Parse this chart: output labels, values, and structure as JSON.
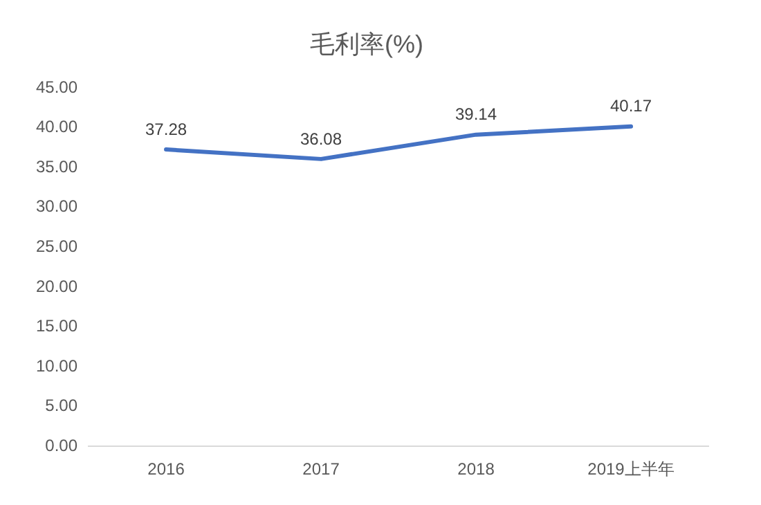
{
  "chart_data": {
    "type": "line",
    "title": "毛利率(%)",
    "categories": [
      "2016",
      "2017",
      "2018",
      "2019上半年"
    ],
    "series": [
      {
        "color": "#4472c4",
        "values": [
          37.28,
          36.08,
          39.14,
          40.17
        ]
      }
    ],
    "ylim": [
      0,
      45
    ],
    "yticks": [
      {
        "value": 0,
        "label": "0.00"
      },
      {
        "value": 5,
        "label": "5.00"
      },
      {
        "value": 10,
        "label": "10.00"
      },
      {
        "value": 15,
        "label": "15.00"
      },
      {
        "value": 20,
        "label": "20.00"
      },
      {
        "value": 25,
        "label": "25.00"
      },
      {
        "value": 30,
        "label": "30.00"
      },
      {
        "value": 35,
        "label": "35.00"
      },
      {
        "value": 40,
        "label": "40.00"
      },
      {
        "value": 45,
        "label": "45.00"
      }
    ],
    "grid": false,
    "legend": false,
    "marker": "none",
    "line_style": "solid",
    "data_labels": true
  }
}
